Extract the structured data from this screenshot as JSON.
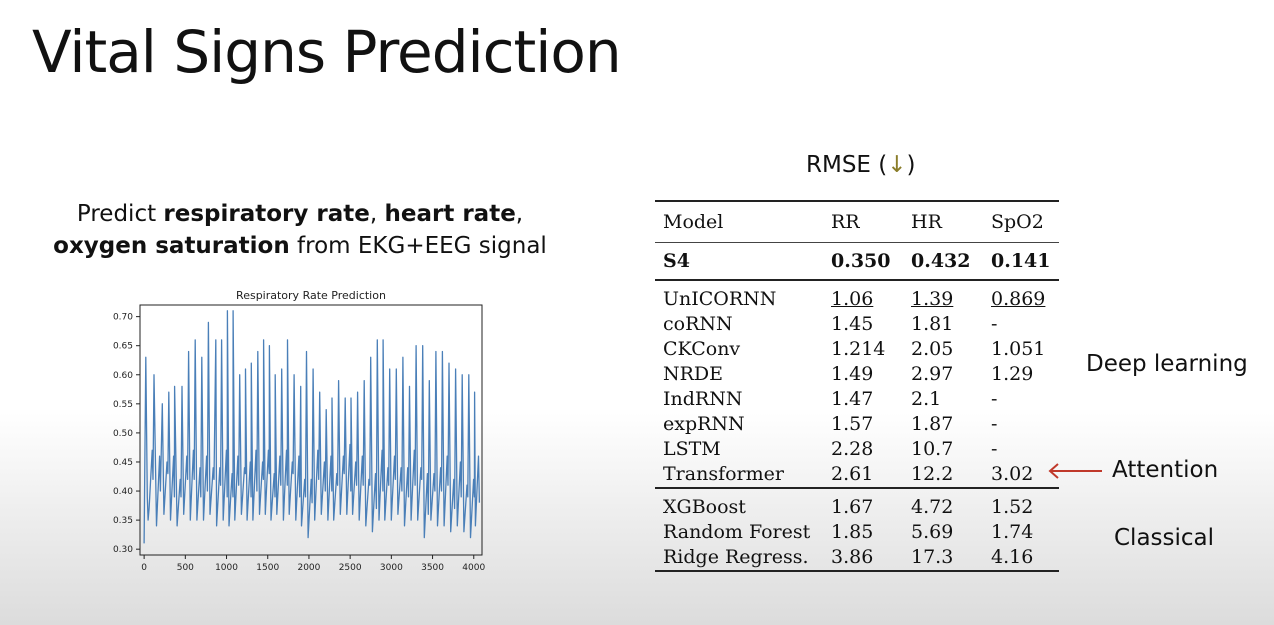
{
  "slide": {
    "title": "Vital Signs Prediction",
    "desc_predict": "Predict ",
    "desc_rr": "respiratory rate",
    "desc_sep": ", ",
    "desc_hr": "heart rate",
    "desc_comma2": ",",
    "desc_o2": "oxygen saturation",
    "desc_rest": " from EKG+EEG signal"
  },
  "chart_data": {
    "type": "line",
    "title": "Respiratory Rate Prediction",
    "xlabel": "",
    "ylabel": "",
    "xlim": [
      -50,
      4100
    ],
    "ylim": [
      0.29,
      0.72
    ],
    "xticks": [
      0,
      500,
      1000,
      1500,
      2000,
      2500,
      3000,
      3500,
      4000
    ],
    "yticks": [
      0.3,
      0.35,
      0.4,
      0.45,
      0.5,
      0.55,
      0.6,
      0.65,
      0.7
    ],
    "grid": false,
    "color": "#4a7fb8",
    "series": [
      {
        "values_note": "",
        "peaks": [
          [
            0,
            0.63
          ],
          [
            100,
            0.6
          ],
          [
            200,
            0.55
          ],
          [
            280,
            0.57
          ],
          [
            350,
            0.58
          ],
          [
            440,
            0.58
          ],
          [
            520,
            0.64
          ],
          [
            600,
            0.66
          ],
          [
            680,
            0.63
          ],
          [
            760,
            0.69
          ],
          [
            850,
            0.66
          ],
          [
            920,
            0.66
          ],
          [
            990,
            0.71
          ],
          [
            1060,
            0.71
          ],
          [
            1140,
            0.6
          ],
          [
            1210,
            0.61
          ],
          [
            1280,
            0.62
          ],
          [
            1360,
            0.64
          ],
          [
            1430,
            0.66
          ],
          [
            1500,
            0.65
          ],
          [
            1570,
            0.6
          ],
          [
            1650,
            0.61
          ],
          [
            1720,
            0.66
          ],
          [
            1800,
            0.6
          ],
          [
            1880,
            0.58
          ],
          [
            1950,
            0.64
          ],
          [
            2030,
            0.61
          ],
          [
            2110,
            0.57
          ],
          [
            2190,
            0.54
          ],
          [
            2260,
            0.56
          ],
          [
            2340,
            0.59
          ],
          [
            2420,
            0.56
          ],
          [
            2490,
            0.56
          ],
          [
            2570,
            0.57
          ],
          [
            2650,
            0.59
          ],
          [
            2730,
            0.63
          ],
          [
            2810,
            0.66
          ],
          [
            2880,
            0.66
          ],
          [
            2960,
            0.61
          ],
          [
            3040,
            0.61
          ],
          [
            3120,
            0.63
          ],
          [
            3200,
            0.58
          ],
          [
            3280,
            0.65
          ],
          [
            3360,
            0.65
          ],
          [
            3440,
            0.59
          ],
          [
            3520,
            0.64
          ],
          [
            3600,
            0.64
          ],
          [
            3680,
            0.62
          ],
          [
            3760,
            0.61
          ],
          [
            3840,
            0.6
          ],
          [
            3920,
            0.6
          ],
          [
            3990,
            0.57
          ]
        ],
        "troughs": [
          [
            0,
            0.31
          ],
          [
            60,
            0.37
          ],
          [
            150,
            0.34
          ],
          [
            240,
            0.36
          ],
          [
            320,
            0.35
          ],
          [
            400,
            0.34
          ],
          [
            480,
            0.36
          ],
          [
            560,
            0.35
          ],
          [
            640,
            0.35
          ],
          [
            720,
            0.35
          ],
          [
            800,
            0.36
          ],
          [
            880,
            0.34
          ],
          [
            960,
            0.35
          ],
          [
            1030,
            0.34
          ],
          [
            1100,
            0.35
          ],
          [
            1180,
            0.36
          ],
          [
            1250,
            0.35
          ],
          [
            1320,
            0.35
          ],
          [
            1400,
            0.36
          ],
          [
            1470,
            0.36
          ],
          [
            1540,
            0.35
          ],
          [
            1610,
            0.36
          ],
          [
            1690,
            0.35
          ],
          [
            1760,
            0.36
          ],
          [
            1840,
            0.35
          ],
          [
            1910,
            0.34
          ],
          [
            1990,
            0.32
          ],
          [
            2070,
            0.35
          ],
          [
            2150,
            0.36
          ],
          [
            2230,
            0.35
          ],
          [
            2300,
            0.35
          ],
          [
            2380,
            0.36
          ],
          [
            2460,
            0.36
          ],
          [
            2530,
            0.36
          ],
          [
            2610,
            0.35
          ],
          [
            2690,
            0.34
          ],
          [
            2770,
            0.33
          ],
          [
            2850,
            0.35
          ],
          [
            2920,
            0.35
          ],
          [
            3000,
            0.35
          ],
          [
            3080,
            0.36
          ],
          [
            3160,
            0.34
          ],
          [
            3240,
            0.35
          ],
          [
            3320,
            0.35
          ],
          [
            3400,
            0.32
          ],
          [
            3480,
            0.35
          ],
          [
            3560,
            0.34
          ],
          [
            3640,
            0.34
          ],
          [
            3720,
            0.33
          ],
          [
            3800,
            0.34
          ],
          [
            3880,
            0.33
          ],
          [
            3960,
            0.32
          ],
          [
            4020,
            0.34
          ]
        ]
      }
    ]
  },
  "table": {
    "caption": "RMSE (",
    "caption_arrow": "↓",
    "caption_end": ")",
    "headers": [
      "Model",
      "RR",
      "HR",
      "SpO2"
    ],
    "s4": [
      "S4",
      "0.350",
      "0.432",
      "0.141"
    ],
    "deep": [
      [
        "UnICORNN",
        "1.06",
        "1.39",
        "0.869"
      ],
      [
        "coRNN",
        "1.45",
        "1.81",
        "-"
      ],
      [
        "CKConv",
        "1.214",
        "2.05",
        "1.051"
      ],
      [
        "NRDE",
        "1.49",
        "2.97",
        "1.29"
      ],
      [
        "IndRNN",
        "1.47",
        "2.1",
        "-"
      ],
      [
        "expRNN",
        "1.57",
        "1.87",
        "-"
      ],
      [
        "LSTM",
        "2.28",
        "10.7",
        "-"
      ],
      [
        "Transformer",
        "2.61",
        "12.2",
        "3.02"
      ]
    ],
    "classical": [
      [
        "XGBoost",
        "1.67",
        "4.72",
        "1.52"
      ],
      [
        "Random Forest",
        "1.85",
        "5.69",
        "1.74"
      ],
      [
        "Ridge Regress.",
        "3.86",
        "17.3",
        "4.16"
      ]
    ]
  },
  "groups": {
    "deep": "Deep learning",
    "attention": "Attention",
    "classical": "Classical"
  },
  "colors": {
    "attention_arrow": "#c0392b",
    "line": "#4a7fb8"
  }
}
